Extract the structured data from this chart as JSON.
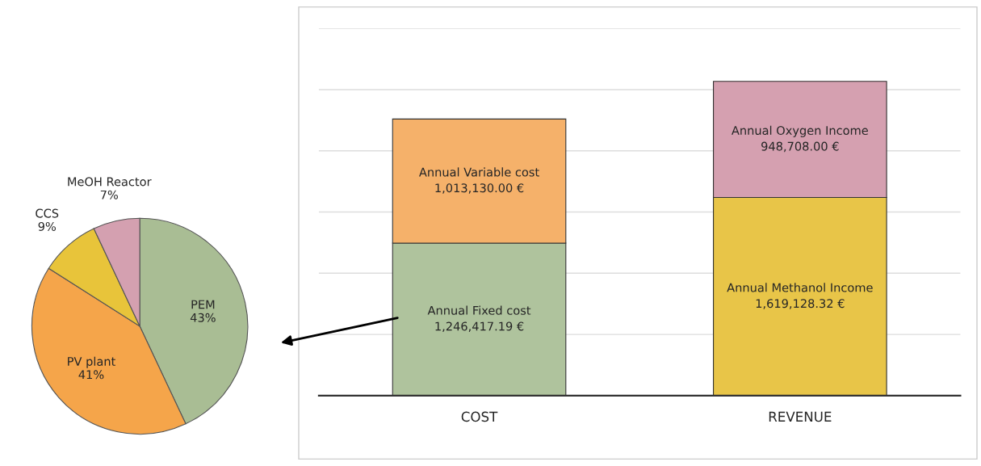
{
  "chart_data": [
    {
      "type": "pie",
      "categories": [
        "PEM",
        "PV plant",
        "CCS",
        "MeOH Reactor"
      ],
      "values": [
        43,
        41,
        9,
        7
      ],
      "colors": [
        "#a9bd94",
        "#f5a54a",
        "#e8c43a",
        "#d4a0b0"
      ],
      "value_labels": [
        "43%",
        "41%",
        "9%",
        "7%"
      ]
    },
    {
      "type": "bar",
      "stacked": true,
      "categories": [
        "COST",
        "REVENUE"
      ],
      "ylim": [
        0,
        3000000
      ],
      "yticks": [
        {
          "value": 0,
          "label": null
        },
        {
          "value": 500000,
          "label": null
        },
        {
          "value": 1000000,
          "label": null
        },
        {
          "value": 1500000,
          "label": null
        },
        {
          "value": 2000000,
          "label": null
        },
        {
          "value": 2500000,
          "label": null
        },
        {
          "value": 3000000,
          "label": null
        }
      ],
      "grid": "y",
      "tick_labels": "x",
      "series": [
        {
          "name": "Annual Fixed cost",
          "color": "#afc39d",
          "values": [
            1246417.19,
            null
          ],
          "value_labels": [
            "1,246,417.19 €",
            null
          ]
        },
        {
          "name": "Annual Variable cost",
          "color": "#f5b16a",
          "values": [
            1013130.0,
            null
          ],
          "value_labels": [
            "1,013,130.00 €",
            null
          ]
        },
        {
          "name": "Annual Methanol Income",
          "color": "#e8c548",
          "values": [
            null,
            1619128.32
          ],
          "value_labels": [
            null,
            "1,619,128.32 €"
          ]
        },
        {
          "name": "Annual Oxygen Income",
          "color": "#d5a0b0",
          "values": [
            null,
            948708.0
          ],
          "value_labels": [
            null,
            "948,708.00 €"
          ]
        }
      ]
    }
  ]
}
